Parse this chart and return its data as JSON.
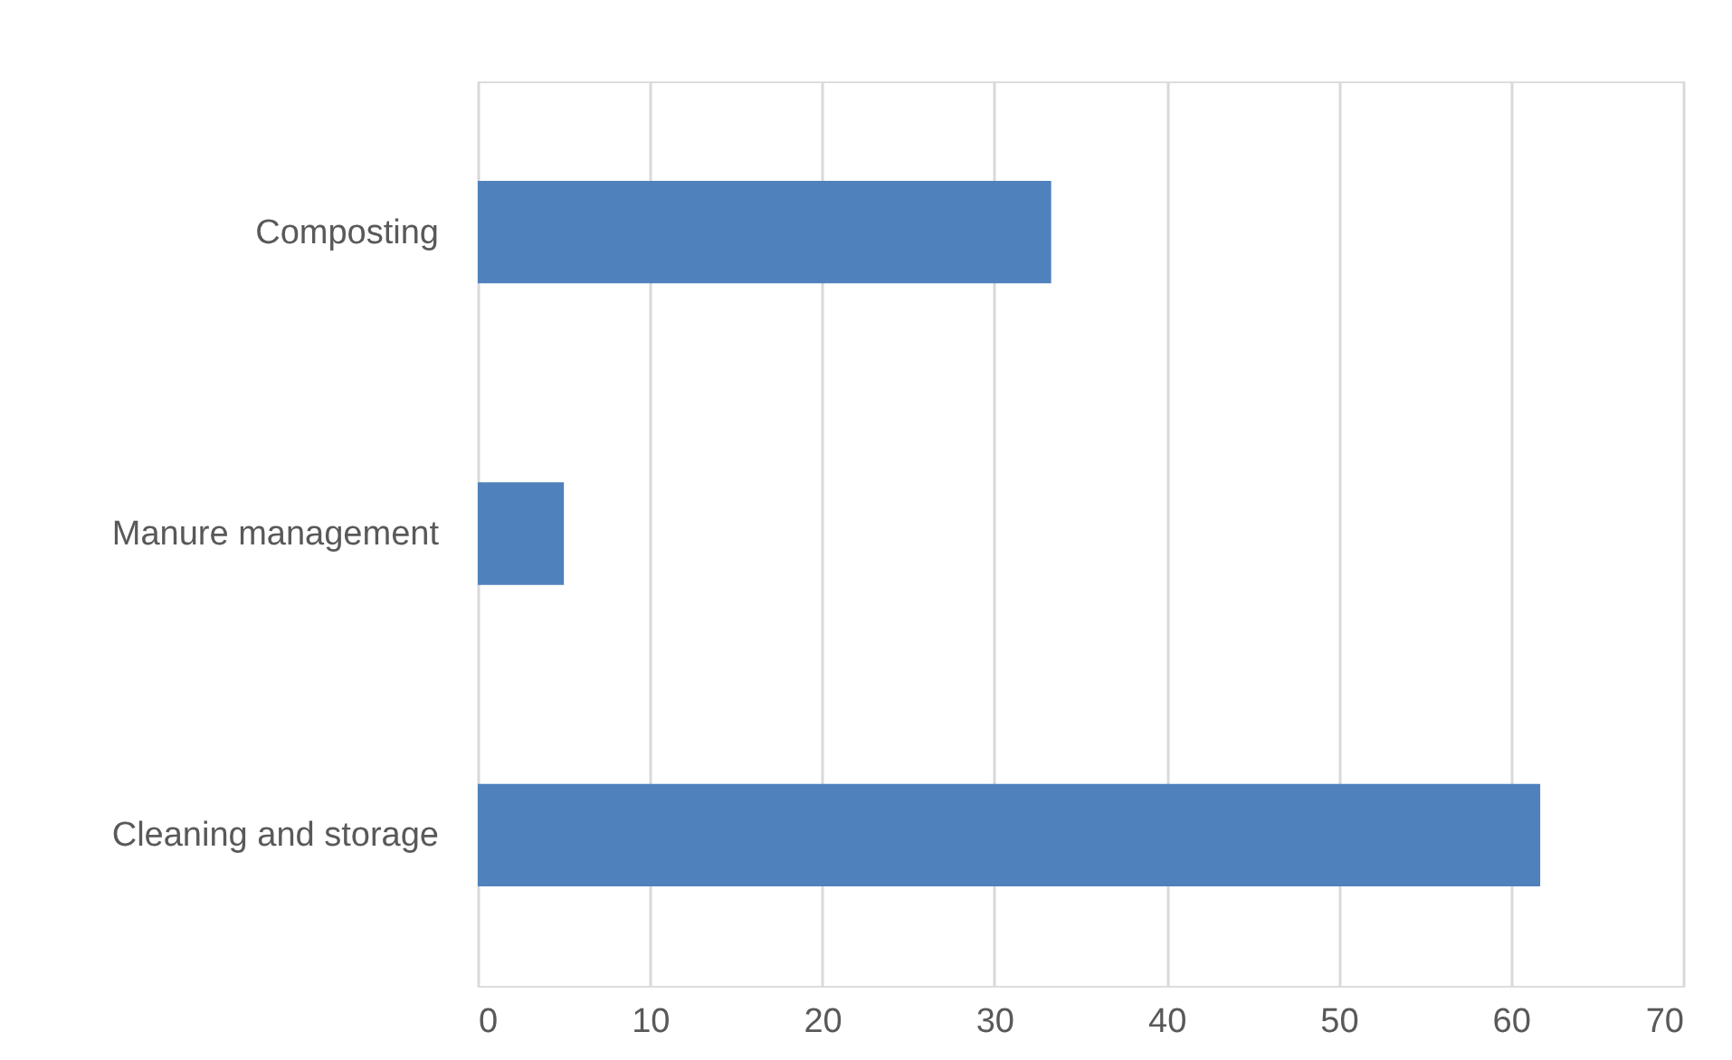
{
  "chart_data": {
    "type": "bar",
    "orientation": "horizontal",
    "categories": [
      "Composting",
      "Manure management",
      "Cleaning and storage"
    ],
    "values": [
      33.3,
      5.0,
      61.7
    ],
    "color": "#4f81bd",
    "xlim": [
      0,
      70
    ],
    "xticks": [
      0,
      10,
      20,
      30,
      40,
      50,
      60,
      70
    ],
    "grid": "x"
  }
}
